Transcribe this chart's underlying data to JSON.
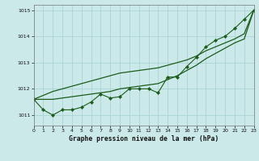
{
  "x": [
    0,
    1,
    2,
    3,
    4,
    5,
    6,
    7,
    8,
    9,
    10,
    11,
    12,
    13,
    14,
    15,
    16,
    17,
    18,
    19,
    20,
    21,
    22,
    23
  ],
  "line_jagged": [
    1011.6,
    1011.2,
    1011.0,
    1011.2,
    1011.2,
    1011.3,
    1011.5,
    1011.8,
    1011.65,
    1011.7,
    1012.0,
    1012.0,
    1012.0,
    1011.85,
    1012.45,
    1012.45,
    1012.85,
    1013.2,
    1013.6,
    1013.85,
    1014.0,
    1014.3,
    1014.65,
    1015.0
  ],
  "line_straight1": [
    1011.6,
    1011.75,
    1011.9,
    1012.0,
    1012.1,
    1012.2,
    1012.3,
    1012.4,
    1012.5,
    1012.6,
    1012.65,
    1012.7,
    1012.75,
    1012.8,
    1012.9,
    1013.0,
    1013.1,
    1013.25,
    1013.45,
    1013.6,
    1013.75,
    1013.9,
    1014.1,
    1015.0
  ],
  "line_straight2": [
    1011.6,
    1011.6,
    1011.6,
    1011.65,
    1011.7,
    1011.75,
    1011.8,
    1011.85,
    1011.9,
    1012.0,
    1012.05,
    1012.1,
    1012.15,
    1012.2,
    1012.35,
    1012.5,
    1012.7,
    1012.9,
    1013.15,
    1013.35,
    1013.55,
    1013.75,
    1013.9,
    1015.0
  ],
  "bg_color": "#cce9e9",
  "grid_color": "#aad4d4",
  "line_color": "#1a5c1a",
  "xlabel": "Graphe pression niveau de la mer (hPa)",
  "yticks": [
    1011,
    1012,
    1013,
    1014,
    1015
  ],
  "xtick_labels": [
    "0",
    "1",
    "2",
    "3",
    "4",
    "5",
    "6",
    "7",
    "8",
    "9",
    "10",
    "11",
    "12",
    "13",
    "14",
    "15",
    "16",
    "17",
    "18",
    "19",
    "20",
    "21",
    "22",
    "23"
  ],
  "xlim": [
    0,
    23
  ],
  "ylim": [
    1010.6,
    1015.2
  ]
}
